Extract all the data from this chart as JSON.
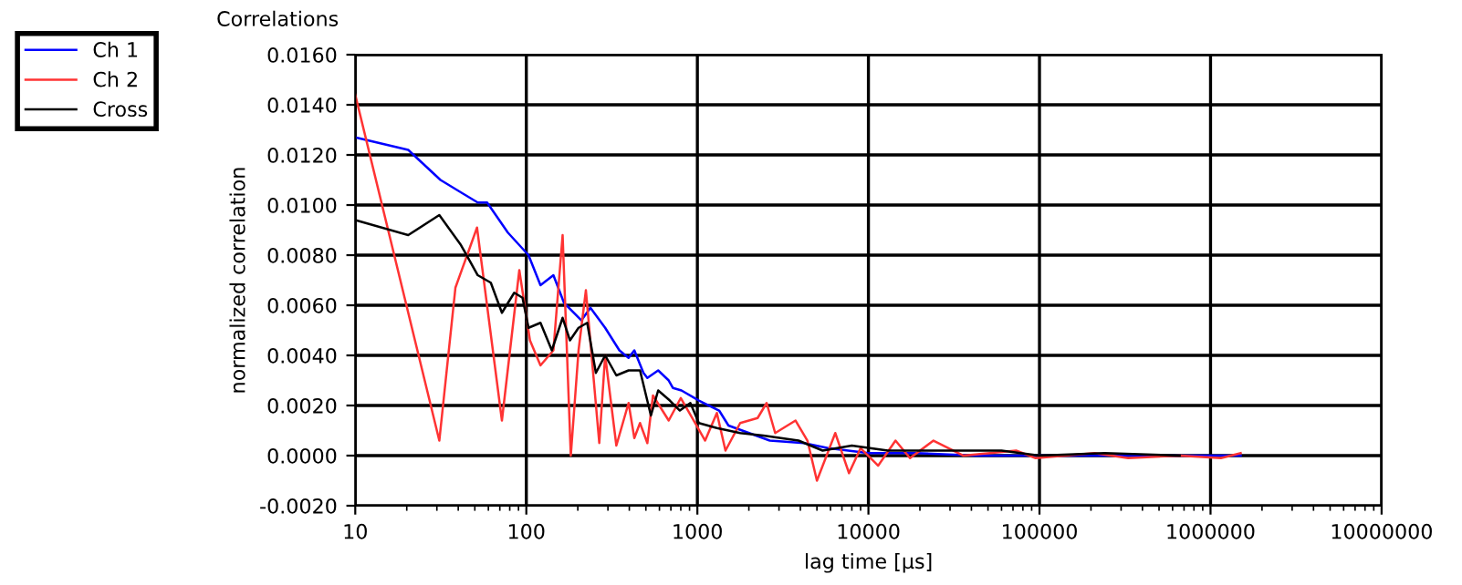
{
  "chart_data": {
    "type": "line",
    "title": "Correlations",
    "xlabel": "lag time [µs]",
    "ylabel": "normalized correlation",
    "log": "x",
    "grid": true,
    "legend": "top left",
    "marker": "none",
    "line_style": "solid",
    "xlim": [
      10,
      10000000
    ],
    "xticks": [
      10,
      100,
      1000,
      10000,
      100000,
      1000000,
      10000000
    ],
    "ylim": [
      -0.002,
      0.016
    ],
    "yticks": [
      {
        "value": -0.002,
        "label": "-0.0020"
      },
      {
        "value": 0,
        "label": "0.0000"
      },
      {
        "value": 0.002,
        "label": "0.0020"
      },
      {
        "value": 0.004,
        "label": "0.0040"
      },
      {
        "value": 0.006,
        "label": "0.0060"
      },
      {
        "value": 0.008,
        "label": "0.0080"
      },
      {
        "value": 0.01,
        "label": "0.0100"
      },
      {
        "value": 0.012,
        "label": "0.0120"
      },
      {
        "value": 0.014,
        "label": "0.0140"
      },
      {
        "value": 0.016,
        "label": "0.0160"
      }
    ],
    "series": [
      {
        "name": "Ch 1",
        "color": "#0000ff",
        "x": [
          10,
          20.4,
          31.5,
          52,
          59,
          78,
          103,
          121,
          144,
          166,
          210,
          237,
          289,
          350,
          396,
          428,
          484,
          510,
          590,
          680,
          720,
          807,
          1020,
          1340,
          1520,
          2650,
          4200,
          5800,
          10000,
          19000,
          42000,
          100000,
          450000,
          1500000
        ],
        "values": [
          0.0127,
          0.0122,
          0.011,
          0.0101,
          0.0101,
          0.0089,
          0.008,
          0.0068,
          0.0072,
          0.0061,
          0.0054,
          0.0059,
          0.0051,
          0.0042,
          0.0039,
          0.0042,
          0.0033,
          0.0031,
          0.0034,
          0.003,
          0.0027,
          0.0026,
          0.0022,
          0.0018,
          0.0012,
          0.0006,
          0.0005,
          0.0003,
          0.0001,
          0.0001,
          0.0,
          0.0,
          0.0,
          0.0
        ]
      },
      {
        "name": "Ch 2",
        "color": "#ff3333",
        "x": [
          10,
          31,
          38.5,
          51.5,
          72,
          91,
          105,
          121,
          144,
          163,
          182,
          202,
          223,
          267,
          289,
          336,
          396,
          428,
          462,
          510,
          550,
          680,
          800,
          1110,
          1300,
          1460,
          1780,
          2250,
          2540,
          2850,
          3750,
          4400,
          5000,
          6400,
          7700,
          9000,
          11400,
          14400,
          17500,
          24000,
          36000,
          73000,
          95000,
          210000,
          330000,
          660000,
          1150000,
          1500000
        ],
        "values": [
          0.0144,
          0.0006,
          0.0067,
          0.0091,
          0.0014,
          0.0074,
          0.0046,
          0.0036,
          0.0042,
          0.0088,
          0.0,
          0.0042,
          0.0066,
          0.0005,
          0.004,
          0.0004,
          0.0021,
          0.0007,
          0.0013,
          0.0005,
          0.0024,
          0.0014,
          0.0023,
          0.0006,
          0.0017,
          0.0002,
          0.0013,
          0.0015,
          0.0021,
          0.0009,
          0.0014,
          0.0006,
          -0.001,
          0.0009,
          -0.0007,
          0.0003,
          -0.0004,
          0.0006,
          -0.0001,
          0.0006,
          0.0,
          0.0002,
          -0.0001,
          0.0001,
          -0.0001,
          0.0,
          -0.0001,
          0.0001
        ]
      },
      {
        "name": "Cross",
        "color": "#000000",
        "x": [
          10,
          20.4,
          31,
          41.5,
          52,
          62,
          72,
          85,
          95,
          103,
          121,
          141,
          163,
          180,
          202,
          227,
          255,
          289,
          336,
          396,
          462,
          535,
          590,
          690,
          790,
          910,
          1020,
          1300,
          1780,
          2430,
          3900,
          5400,
          8000,
          13000,
          28000,
          60000,
          100000,
          240000,
          660000
        ],
        "values": [
          0.0094,
          0.0088,
          0.0096,
          0.0084,
          0.0072,
          0.0069,
          0.0057,
          0.0065,
          0.0063,
          0.0051,
          0.0053,
          0.0042,
          0.0055,
          0.0046,
          0.0051,
          0.0053,
          0.0033,
          0.004,
          0.0032,
          0.0034,
          0.0034,
          0.0016,
          0.0026,
          0.0022,
          0.0018,
          0.0021,
          0.0013,
          0.0011,
          0.0009,
          0.0008,
          0.0006,
          0.0002,
          0.0004,
          0.0002,
          0.0002,
          0.0002,
          0.0,
          0.0001,
          0.0
        ]
      }
    ]
  }
}
